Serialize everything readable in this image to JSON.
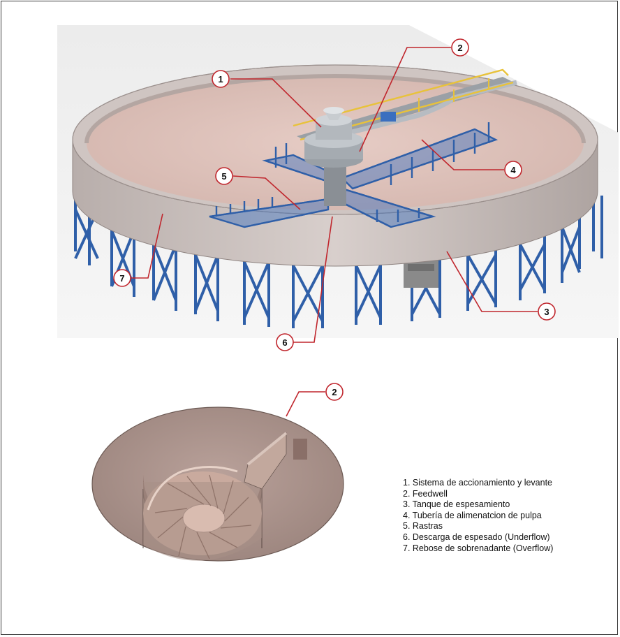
{
  "callouts": {
    "c1": "1",
    "c2": "2",
    "c3": "3",
    "c4": "4",
    "c5": "5",
    "c6": "6",
    "c7": "7",
    "c2_detail": "2"
  },
  "legend": [
    "1. Sistema de accionamiento y levante",
    "2. Feedwell",
    "3. Tanque de espesamiento",
    "4. Tubería de alimenatcion de pulpa",
    "5. Rastras",
    "6. Descarga de espesado (Underflow)",
    "7. Rebose de sobrenadante (Overflow)"
  ],
  "colors": {
    "leader": "#c0262d",
    "structure": "#2f5fa8",
    "walkway": "#e8c23a",
    "tank": "#c9bdb8",
    "slurry": "#dcbfb8",
    "feedwell": "#c2a89d"
  }
}
